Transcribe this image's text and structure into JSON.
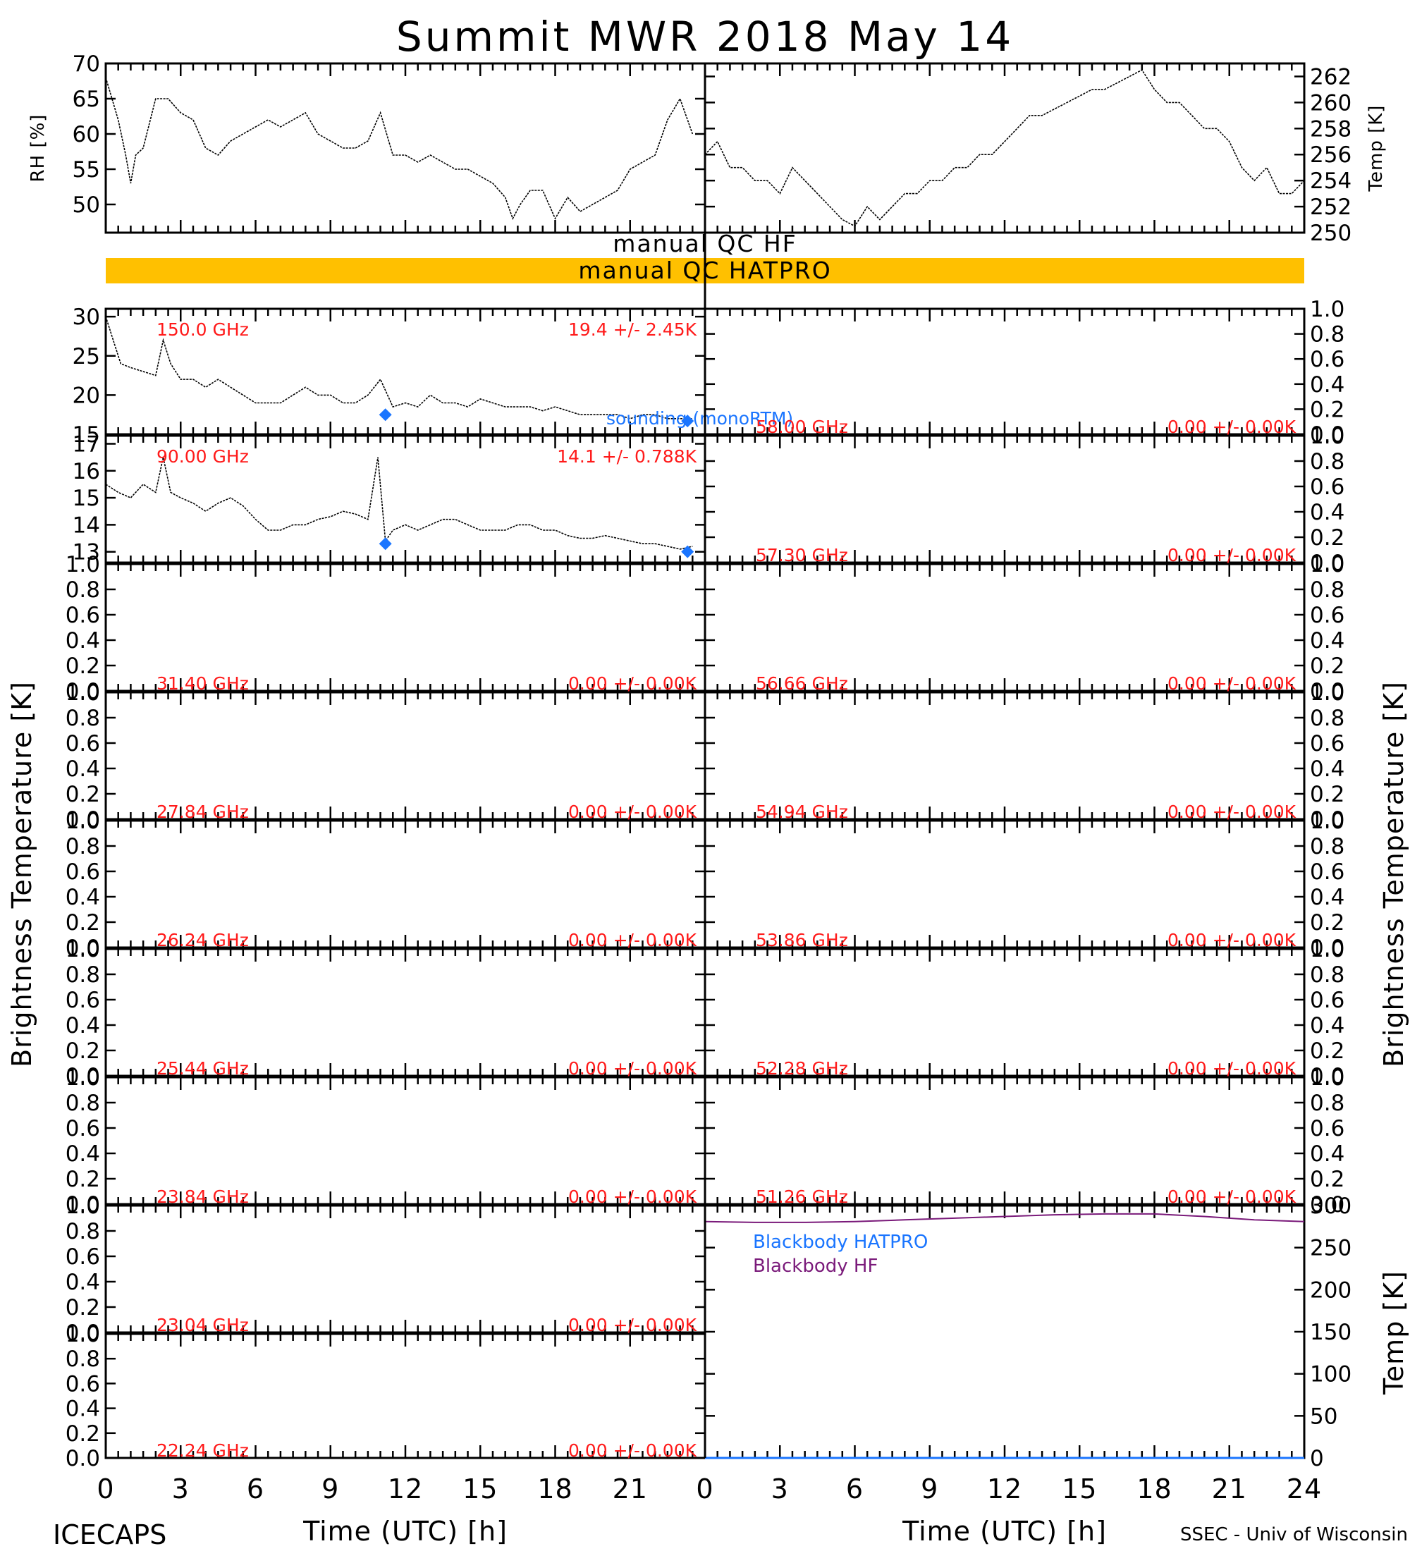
{
  "title": "Summit MWR 2018 May 14",
  "footer": {
    "left": "ICECAPS",
    "right": "SSEC - Univ of Wisconsin"
  },
  "x_axis": {
    "label": "Time (UTC) [h]",
    "ticks": [
      "0",
      "3",
      "6",
      "9",
      "12",
      "15",
      "18",
      "21",
      "24"
    ]
  },
  "y_axis_left": "Brightness Temperature [K]",
  "y_axis_right": "Brightness Temperature [K]",
  "qc": {
    "hf_label": "manual QC HF",
    "hatpro_label": "manual QC HATPRO",
    "hatpro_color": "#ffc000"
  },
  "colors": {
    "data": "#000000",
    "stats": "#ff1a1a",
    "model": "#1a75ff",
    "bb_hatpro": "#1a75ff",
    "bb_hf": "#7a1a7a"
  },
  "chart_data": [
    {
      "type": "line",
      "id": "rh",
      "ylabel": "RH [%]",
      "ylim": [
        46,
        70
      ],
      "yticks": [
        "50",
        "55",
        "60",
        "65",
        "70"
      ],
      "x": [
        0,
        0.5,
        0.8,
        1.0,
        1.2,
        1.5,
        2.0,
        2.5,
        3.0,
        3.5,
        4.0,
        4.5,
        5.0,
        5.5,
        6.0,
        6.5,
        7.0,
        7.5,
        8.0,
        8.5,
        9.0,
        9.5,
        10.0,
        10.5,
        11.0,
        11.5,
        12.0,
        12.5,
        13.0,
        13.5,
        14.0,
        14.5,
        15.0,
        15.5,
        16.0,
        16.3,
        16.6,
        17.0,
        17.5,
        18.0,
        18.5,
        19.0,
        19.5,
        20.0,
        20.5,
        21.0,
        21.5,
        22.0,
        22.5,
        23.0,
        23.5
      ],
      "values": [
        68,
        62,
        57,
        53,
        57,
        58,
        65,
        65,
        63,
        62,
        58,
        57,
        59,
        60,
        61,
        62,
        61,
        62,
        63,
        60,
        59,
        58,
        58,
        59,
        63,
        57,
        57,
        56,
        57,
        56,
        55,
        55,
        54,
        53,
        51,
        48,
        50,
        52,
        52,
        48,
        51,
        49,
        50,
        51,
        52,
        55,
        56,
        57,
        62,
        65,
        60
      ]
    },
    {
      "type": "line",
      "id": "temp",
      "ylabel": "Temp [K]",
      "ylim": [
        250,
        263
      ],
      "yticks": [
        "250",
        "252",
        "254",
        "256",
        "258",
        "260",
        "262"
      ],
      "x": [
        0,
        0.5,
        1.0,
        1.5,
        2.0,
        2.5,
        3.0,
        3.5,
        4.0,
        4.5,
        5.0,
        5.5,
        6.0,
        6.5,
        7.0,
        7.5,
        8.0,
        8.5,
        9.0,
        9.5,
        10.0,
        10.5,
        11.0,
        11.5,
        12.0,
        12.5,
        13.0,
        13.5,
        14.0,
        14.5,
        15.0,
        15.5,
        16.0,
        16.5,
        17.0,
        17.5,
        18.0,
        18.5,
        19.0,
        19.5,
        20.0,
        20.5,
        21.0,
        21.5,
        22.0,
        22.5,
        23.0,
        23.5,
        24.0
      ],
      "values": [
        256,
        257,
        255,
        255,
        254,
        254,
        253,
        255,
        254,
        253,
        252,
        251,
        250.5,
        252,
        251,
        252,
        253,
        253,
        254,
        254,
        255,
        255,
        256,
        256,
        257,
        258,
        259,
        259,
        259.5,
        260,
        260.5,
        261,
        261,
        261.5,
        262,
        262.5,
        261,
        260,
        260,
        259,
        258,
        258,
        257,
        255,
        254,
        255,
        253,
        253,
        254
      ]
    },
    {
      "type": "line",
      "id": "ch-150",
      "frequency": "150.0 GHz",
      "stats": "19.4 +/-  2.45K",
      "model_label": "sounding (monoRTM)",
      "ylim": [
        15,
        31
      ],
      "yticks": [
        "15",
        "20",
        "25",
        "30"
      ],
      "x": [
        0,
        0.3,
        0.6,
        1.0,
        1.5,
        2.0,
        2.3,
        2.6,
        3.0,
        3.5,
        4.0,
        4.5,
        5.0,
        5.5,
        6.0,
        6.5,
        7.0,
        7.5,
        8.0,
        8.5,
        9.0,
        9.5,
        10.0,
        10.5,
        11.0,
        11.5,
        12.0,
        12.5,
        13.0,
        13.5,
        14.0,
        14.5,
        15.0,
        15.5,
        16.0,
        16.5,
        17.0,
        17.5,
        18.0,
        18.5,
        19.0,
        19.5,
        20.0,
        20.5,
        21.0,
        21.5,
        22.0,
        22.5,
        23.0,
        23.5
      ],
      "values": [
        30,
        27,
        24,
        23.5,
        23,
        22.5,
        27,
        24,
        22,
        22,
        21,
        22,
        21,
        20,
        19,
        19,
        19,
        20,
        21,
        20,
        20,
        19,
        19,
        20,
        22,
        18.5,
        19,
        18.5,
        20,
        19,
        19,
        18.5,
        19.5,
        19,
        18.5,
        18.5,
        18.5,
        18,
        18.5,
        18,
        17.5,
        17.5,
        17.5,
        17.5,
        17,
        17.5,
        17.5,
        17,
        17,
        17
      ],
      "model_x": [
        11.2,
        23.3
      ],
      "model_values": [
        17.5,
        16.7
      ]
    },
    {
      "type": "line",
      "id": "ch-90",
      "frequency": "90.00 GHz",
      "stats": "14.1 +/- 0.788K",
      "ylim": [
        12.6,
        17.3
      ],
      "yticks": [
        "13",
        "14",
        "15",
        "16",
        "17"
      ],
      "x": [
        0,
        0.5,
        1.0,
        1.5,
        2.0,
        2.3,
        2.6,
        3.0,
        3.5,
        4.0,
        4.5,
        5.0,
        5.5,
        6.0,
        6.5,
        7.0,
        7.5,
        8.0,
        8.5,
        9.0,
        9.5,
        10.0,
        10.5,
        10.9,
        11.2,
        11.5,
        12.0,
        12.5,
        13.0,
        13.5,
        14.0,
        14.5,
        15.0,
        15.5,
        16.0,
        16.5,
        17.0,
        17.5,
        18.0,
        18.5,
        19.0,
        19.5,
        20.0,
        20.5,
        21.0,
        21.5,
        22.0,
        22.5,
        23.0,
        23.5
      ],
      "values": [
        15.5,
        15.2,
        15,
        15.5,
        15.2,
        16.5,
        15.2,
        15,
        14.8,
        14.5,
        14.8,
        15,
        14.7,
        14.2,
        13.8,
        13.8,
        14,
        14,
        14.2,
        14.3,
        14.5,
        14.4,
        14.2,
        16.5,
        13.4,
        13.8,
        14,
        13.8,
        14,
        14.2,
        14.2,
        14,
        13.8,
        13.8,
        13.8,
        14,
        14,
        13.8,
        13.8,
        13.6,
        13.5,
        13.5,
        13.6,
        13.5,
        13.4,
        13.3,
        13.3,
        13.2,
        13.1,
        13.2
      ],
      "model_x": [
        11.2,
        23.3
      ],
      "model_values": [
        13.3,
        13.0
      ]
    },
    {
      "type": "line",
      "id": "ch-58-00",
      "frequency": "58.00 GHz",
      "stats": "0.00 +/-  0.00K",
      "ylim": [
        0,
        1
      ],
      "yticks": [
        "0.0",
        "0.2",
        "0.4",
        "0.6",
        "0.8",
        "1.0"
      ],
      "values": []
    },
    {
      "type": "line",
      "id": "ch-57-30",
      "frequency": "57.30 GHz",
      "stats": "0.00 +/-  0.00K",
      "ylim": [
        0,
        1
      ],
      "yticks": [
        "0.0",
        "0.2",
        "0.4",
        "0.6",
        "0.8",
        "1.0"
      ],
      "values": []
    },
    {
      "type": "line",
      "id": "ch-31-40",
      "frequency": "31.40 GHz",
      "stats": "0.00 +/-  0.00K",
      "ylim": [
        0,
        1
      ],
      "yticks": [
        "0.0",
        "0.2",
        "0.4",
        "0.6",
        "0.8",
        "1.0"
      ],
      "values": []
    },
    {
      "type": "line",
      "id": "ch-56-66",
      "frequency": "56.66 GHz",
      "stats": "0.00 +/-  0.00K",
      "ylim": [
        0,
        1
      ],
      "yticks": [
        "0.0",
        "0.2",
        "0.4",
        "0.6",
        "0.8",
        "1.0"
      ],
      "values": []
    },
    {
      "type": "line",
      "id": "ch-27-84",
      "frequency": "27.84 GHz",
      "stats": "0.00 +/-  0.00K",
      "ylim": [
        0,
        1
      ],
      "yticks": [
        "0.0",
        "0.2",
        "0.4",
        "0.6",
        "0.8",
        "1.0"
      ],
      "values": []
    },
    {
      "type": "line",
      "id": "ch-54-94",
      "frequency": "54.94 GHz",
      "stats": "0.00 +/-  0.00K",
      "ylim": [
        0,
        1
      ],
      "yticks": [
        "0.0",
        "0.2",
        "0.4",
        "0.6",
        "0.8",
        "1.0"
      ],
      "values": []
    },
    {
      "type": "line",
      "id": "ch-26-24",
      "frequency": "26.24 GHz",
      "stats": "0.00 +/-  0.00K",
      "ylim": [
        0,
        1
      ],
      "yticks": [
        "0.0",
        "0.2",
        "0.4",
        "0.6",
        "0.8",
        "1.0"
      ],
      "values": []
    },
    {
      "type": "line",
      "id": "ch-53-86",
      "frequency": "53.86 GHz",
      "stats": "0.00 +/-  0.00K",
      "ylim": [
        0,
        1
      ],
      "yticks": [
        "0.0",
        "0.2",
        "0.4",
        "0.6",
        "0.8",
        "1.0"
      ],
      "values": []
    },
    {
      "type": "line",
      "id": "ch-25-44",
      "frequency": "25.44 GHz",
      "stats": "0.00 +/-  0.00K",
      "ylim": [
        0,
        1
      ],
      "yticks": [
        "0.0",
        "0.2",
        "0.4",
        "0.6",
        "0.8",
        "1.0"
      ],
      "values": []
    },
    {
      "type": "line",
      "id": "ch-52-28",
      "frequency": "52.28 GHz",
      "stats": "0.00 +/-  0.00K",
      "ylim": [
        0,
        1
      ],
      "yticks": [
        "0.0",
        "0.2",
        "0.4",
        "0.6",
        "0.8",
        "1.0"
      ],
      "values": []
    },
    {
      "type": "line",
      "id": "ch-23-84",
      "frequency": "23.84 GHz",
      "stats": "0.00 +/-  0.00K",
      "ylim": [
        0,
        1
      ],
      "yticks": [
        "0.0",
        "0.2",
        "0.4",
        "0.6",
        "0.8",
        "1.0"
      ],
      "values": []
    },
    {
      "type": "line",
      "id": "ch-51-26",
      "frequency": "51.26 GHz",
      "stats": "0.00 +/-  0.00K",
      "ylim": [
        0,
        1
      ],
      "yticks": [
        "0.0",
        "0.2",
        "0.4",
        "0.6",
        "0.8",
        "1.0"
      ],
      "values": []
    },
    {
      "type": "line",
      "id": "ch-23-04",
      "frequency": "23.04 GHz",
      "stats": "0.00 +/-  0.00K",
      "ylim": [
        0,
        1
      ],
      "yticks": [
        "0.0",
        "0.2",
        "0.4",
        "0.6",
        "0.8",
        "1.0"
      ],
      "values": []
    },
    {
      "type": "line",
      "id": "ch-22-24",
      "frequency": "22.24 GHz",
      "stats": "0.00 +/-  0.00K",
      "ylim": [
        0,
        1
      ],
      "yticks": [
        "0.0",
        "0.2",
        "0.4",
        "0.6",
        "0.8",
        "1.0"
      ],
      "values": []
    },
    {
      "type": "line",
      "id": "blackbody",
      "ylabel": "Temp [K]",
      "ylim": [
        0,
        300
      ],
      "yticks": [
        "0",
        "50",
        "100",
        "150",
        "200",
        "250",
        "300"
      ],
      "series": [
        {
          "name": "Blackbody HATPRO",
          "x": [
            0,
            24
          ],
          "values": [
            0,
            0
          ]
        },
        {
          "name": "Blackbody HF",
          "x": [
            0,
            2,
            4,
            6,
            8,
            10,
            12,
            14,
            16,
            18,
            20,
            22,
            24
          ],
          "values": [
            281,
            280,
            280,
            281,
            283,
            285,
            287,
            289,
            290,
            290,
            287,
            283,
            281
          ]
        }
      ]
    }
  ]
}
